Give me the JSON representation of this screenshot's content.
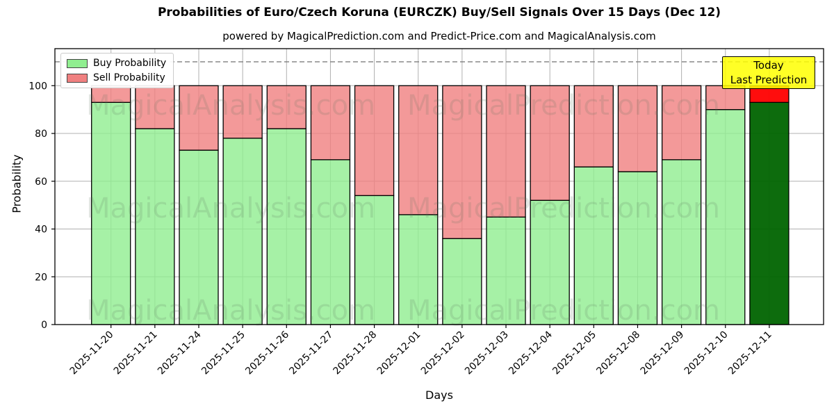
{
  "title": "Probabilities of Euro/Czech Koruna (EURCZK) Buy/Sell Signals Over 15 Days (Dec 12)",
  "subtitle": "powered by MagicalPrediction.com and Predict-Price.com and MagicalAnalysis.com",
  "legend": {
    "items": [
      {
        "label": "Buy Probability",
        "color": "#90EE90"
      },
      {
        "label": "Sell Probability",
        "color": "#F08080"
      }
    ]
  },
  "annotation_box": {
    "line1": "Today",
    "line2": "Last Prediction",
    "bg_color": "#FFFF00",
    "border_color": "#000000"
  },
  "watermarks": [
    "MagicalAnalysis.com",
    "MagicalPrediction.com"
  ],
  "chart_data": {
    "type": "bar",
    "stacked": true,
    "title": "Probabilities of Euro/Czech Koruna (EURCZK) Buy/Sell Signals Over 15 Days (Dec 12)",
    "xlabel": "Days",
    "ylabel": "Probability",
    "ylim": [
      0,
      115.5
    ],
    "yticks": [
      0,
      20,
      40,
      60,
      80,
      100
    ],
    "grid": true,
    "legend_position": "upper left",
    "dashed_line_y": 110,
    "categories": [
      "2025-11-20",
      "2025-11-21",
      "2025-11-24",
      "2025-11-25",
      "2025-11-26",
      "2025-11-27",
      "2025-11-28",
      "2025-12-01",
      "2025-12-02",
      "2025-12-03",
      "2025-12-04",
      "2025-12-05",
      "2025-12-08",
      "2025-12-09",
      "2025-12-10",
      "2025-12-11"
    ],
    "series": [
      {
        "name": "Buy Probability",
        "color": "#90EE90",
        "values": [
          93,
          82,
          73,
          78,
          82,
          69,
          54,
          46,
          36,
          45,
          52,
          66,
          64,
          69,
          90,
          93
        ]
      },
      {
        "name": "Sell Probability",
        "color": "#F08080",
        "values": [
          7,
          18,
          27,
          22,
          18,
          31,
          46,
          54,
          64,
          55,
          48,
          34,
          36,
          31,
          10,
          7
        ]
      }
    ],
    "today_bar": {
      "index": 15,
      "buy_color": "#006400",
      "sell_color": "#FF0000"
    },
    "bar_total": 100
  }
}
